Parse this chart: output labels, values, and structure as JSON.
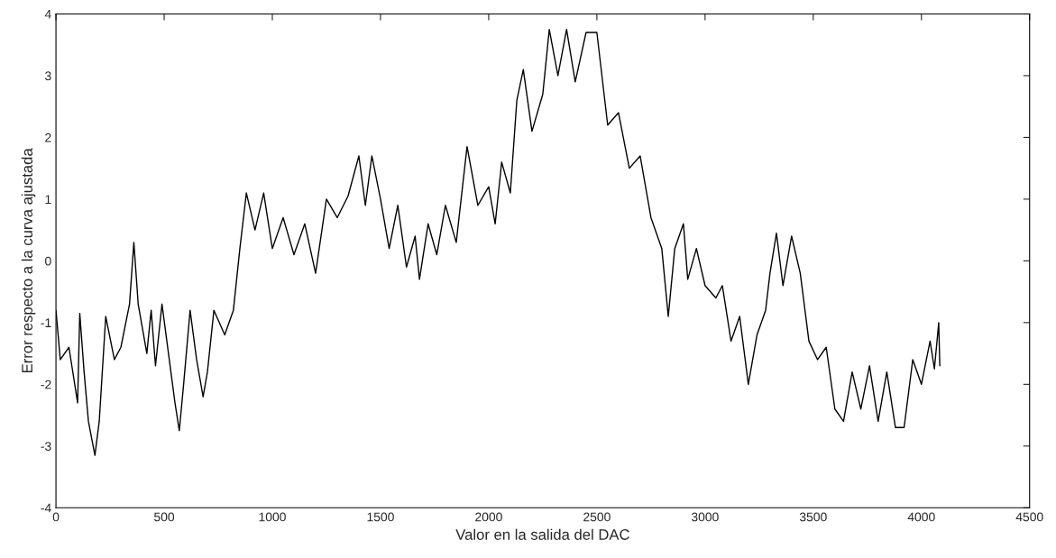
{
  "chart_data": {
    "type": "line",
    "xlabel": "Valor en la salida del DAC",
    "ylabel": "Error respecto a la curva ajustada",
    "xlim": [
      0,
      4500
    ],
    "xticks": [
      0,
      500,
      1000,
      1500,
      2000,
      2500,
      3000,
      3500,
      4000,
      4500
    ],
    "ylim": [
      -4,
      4
    ],
    "yticks": [
      -4,
      -3,
      -2,
      -1,
      0,
      1,
      2,
      3,
      4
    ],
    "grid": false,
    "marker": "none",
    "line_style": "solid",
    "series": [
      {
        "color": "#000000",
        "x": [
          0,
          20,
          60,
          100,
          110,
          130,
          150,
          180,
          200,
          230,
          270,
          300,
          340,
          360,
          380,
          420,
          440,
          460,
          490,
          520,
          550,
          570,
          590,
          620,
          650,
          680,
          700,
          730,
          780,
          820,
          850,
          880,
          920,
          960,
          1000,
          1050,
          1100,
          1150,
          1200,
          1250,
          1300,
          1350,
          1400,
          1430,
          1460,
          1500,
          1540,
          1580,
          1620,
          1660,
          1680,
          1720,
          1760,
          1800,
          1850,
          1900,
          1950,
          2000,
          2030,
          2060,
          2100,
          2130,
          2160,
          2200,
          2250,
          2280,
          2320,
          2360,
          2400,
          2450,
          2500,
          2550,
          2600,
          2650,
          2700,
          2750,
          2800,
          2830,
          2860,
          2900,
          2920,
          2960,
          3000,
          3050,
          3080,
          3120,
          3160,
          3200,
          3240,
          3280,
          3300,
          3330,
          3360,
          3400,
          3440,
          3480,
          3520,
          3560,
          3600,
          3640,
          3680,
          3720,
          3760,
          3800,
          3840,
          3880,
          3920,
          3960,
          4000,
          4040,
          4060,
          4080,
          4085
        ],
        "values": [
          -0.8,
          -1.6,
          -1.4,
          -2.3,
          -0.85,
          -1.8,
          -2.6,
          -3.15,
          -2.6,
          -0.9,
          -1.6,
          -1.4,
          -0.7,
          0.3,
          -0.7,
          -1.5,
          -0.8,
          -1.7,
          -0.7,
          -1.5,
          -2.3,
          -2.75,
          -2.0,
          -0.8,
          -1.6,
          -2.2,
          -1.8,
          -0.8,
          -1.2,
          -0.8,
          0.2,
          1.1,
          0.5,
          1.1,
          0.2,
          0.7,
          0.1,
          0.6,
          -0.2,
          1.0,
          0.7,
          1.05,
          1.7,
          0.9,
          1.7,
          1.0,
          0.2,
          0.9,
          -0.1,
          0.4,
          -0.3,
          0.6,
          0.1,
          0.9,
          0.3,
          1.85,
          0.9,
          1.2,
          0.6,
          1.6,
          1.1,
          2.6,
          3.1,
          2.1,
          2.7,
          3.75,
          3.0,
          3.75,
          2.9,
          3.7,
          3.7,
          2.2,
          2.4,
          1.5,
          1.7,
          0.7,
          0.2,
          -0.9,
          0.2,
          0.6,
          -0.3,
          0.2,
          -0.4,
          -0.6,
          -0.4,
          -1.3,
          -0.9,
          -2.0,
          -1.2,
          -0.8,
          -0.2,
          0.45,
          -0.4,
          0.4,
          -0.2,
          -1.3,
          -1.6,
          -1.4,
          -2.4,
          -2.6,
          -1.8,
          -2.4,
          -1.7,
          -2.6,
          -1.8,
          -2.7,
          -2.7,
          -1.6,
          -2.0,
          -1.3,
          -1.75,
          -1.0,
          -1.7
        ]
      }
    ]
  }
}
